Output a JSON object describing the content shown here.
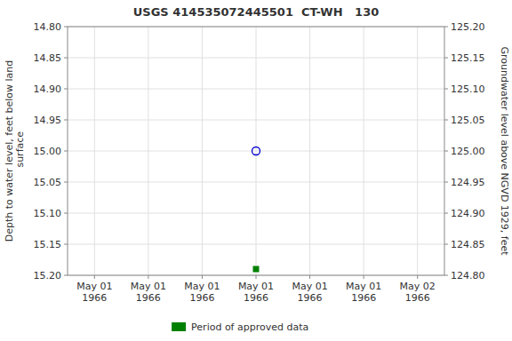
{
  "chart_data": {
    "type": "scatter",
    "title": "USGS 414535072445501  CT-WH   130",
    "y_label": "Depth to water level, feet below land\n surface",
    "y2_label": "Groundwater level above NGVD 1929, feet",
    "categories": [
      "May 01\n1966",
      "May 01\n1966",
      "May 01\n1966",
      "May 01\n1966",
      "May 01\n1966",
      "May 01\n1966",
      "May 02\n1966"
    ],
    "series": [
      {
        "color": "#0000cc",
        "marker": "open-circle",
        "values": [
          null,
          null,
          null,
          15.0,
          null,
          null,
          null
        ]
      },
      {
        "name": "Period of approved data",
        "color": "#008000",
        "marker": "square",
        "values": [
          null,
          null,
          null,
          15.19,
          null,
          null,
          null
        ]
      }
    ],
    "ylim": [
      15.2,
      14.8
    ],
    "yticks": [
      {
        "value": 14.8,
        "label": "14.80"
      },
      {
        "value": 14.85,
        "label": "14.85"
      },
      {
        "value": 14.9,
        "label": "14.90"
      },
      {
        "value": 14.95,
        "label": "14.95"
      },
      {
        "value": 15.0,
        "label": "15.00"
      },
      {
        "value": 15.05,
        "label": "15.05"
      },
      {
        "value": 15.1,
        "label": "15.10"
      },
      {
        "value": 15.15,
        "label": "15.15"
      },
      {
        "value": 15.2,
        "label": "15.20"
      }
    ],
    "y2lim": [
      124.8,
      125.2
    ],
    "y2ticks": [
      {
        "value": 125.2,
        "label": "125.20"
      },
      {
        "value": 125.15,
        "label": "125.15"
      },
      {
        "value": 125.1,
        "label": "125.10"
      },
      {
        "value": 125.05,
        "label": "125.05"
      },
      {
        "value": 125.0,
        "label": "125.00"
      },
      {
        "value": 124.95,
        "label": "124.95"
      },
      {
        "value": 124.9,
        "label": "124.90"
      },
      {
        "value": 124.85,
        "label": "124.85"
      },
      {
        "value": 124.8,
        "label": "124.80"
      }
    ],
    "grid": true,
    "legend": "bottom"
  }
}
